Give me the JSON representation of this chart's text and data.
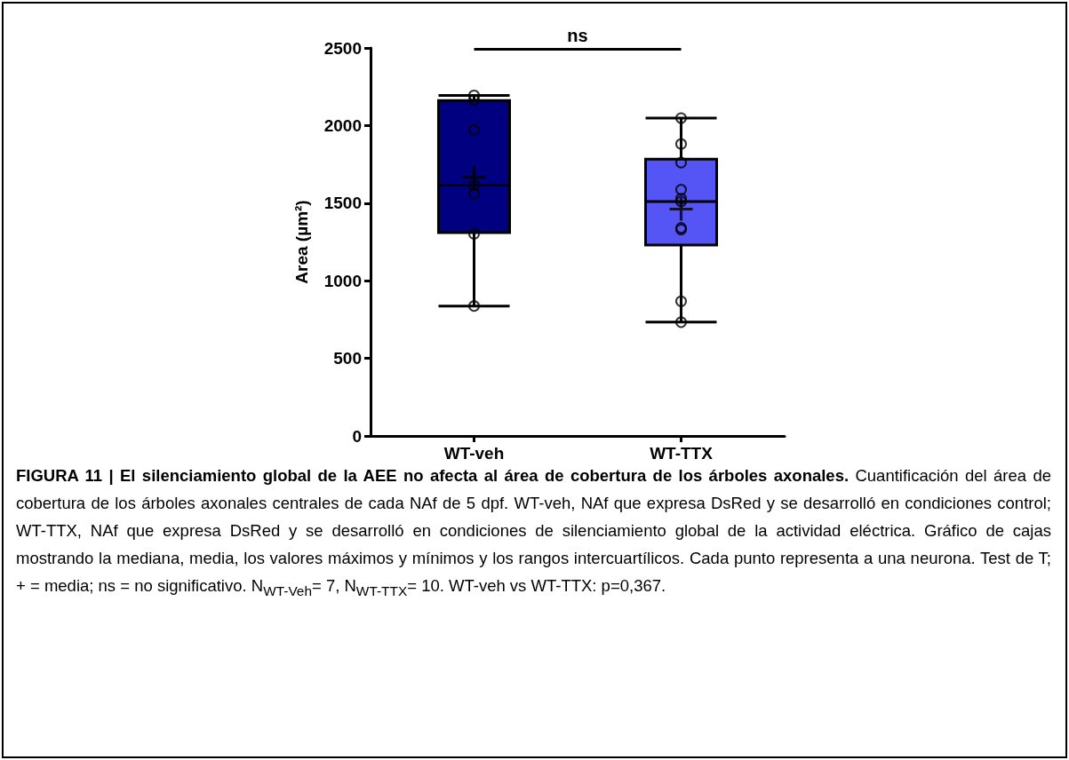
{
  "chart_data": {
    "type": "box",
    "ylabel": "Area (µm²)",
    "categories": [
      "WT-veh",
      "WT-TTX"
    ],
    "boxes": [
      {
        "low": 837,
        "q1": 1310,
        "median": 1616,
        "q3": 2161,
        "high": 2194,
        "mean": 1666
      },
      {
        "low": 733,
        "q1": 1230,
        "median": 1511,
        "q3": 1784,
        "high": 2048,
        "mean": 1462
      }
    ],
    "colors": [
      "#000080",
      "#5555f5"
    ],
    "series": [
      {
        "type": "scatter",
        "color": "#000000",
        "x": [
          "WT-veh",
          "WT-veh",
          "WT-veh",
          "WT-veh",
          "WT-veh",
          "WT-veh",
          "WT-veh",
          "WT-TTX",
          "WT-TTX",
          "WT-TTX",
          "WT-TTX",
          "WT-TTX",
          "WT-TTX",
          "WT-TTX",
          "WT-TTX",
          "WT-TTX",
          "WT-TTX"
        ],
        "values": [
          2194,
          2165,
          1972,
          1616,
          1560,
          1302,
          837,
          2048,
          1881,
          1761,
          1587,
          1529,
          1511,
          1341,
          1330,
          868,
          733
        ]
      }
    ],
    "marker": "circle",
    "ylim": [
      0,
      2500
    ],
    "yticks": [
      0,
      500,
      1000,
      1500,
      2000,
      2500
    ],
    "grid": false,
    "annotations": [
      "ns",
      "FIGURA 11 | El silenciamiento global de la AEE no afecta al área de cobertura de los árboles axonales.",
      "Cuantificación del área de cobertura de los árboles axonales centrales de cada NAf de 5 dpf. WT-veh, NAf que expresa DsRed y se desarrolló en condiciones control; WT-TTX, NAf que expresa DsRed y se desarrolló en condiciones de silenciamiento global de la actividad eléctrica. Gráfico de cajas mostrando la mediana, media, los valores máximos y mínimos y los rangos intercuartílicos. Cada punto representa a una neurona. Test de T; + = media; ns = no significativo. N$_{WT-Veh}$= 7, N$_{WT-TTX}$= 10. WT-veh vs WT-TTX: p=0,367."
    ]
  }
}
